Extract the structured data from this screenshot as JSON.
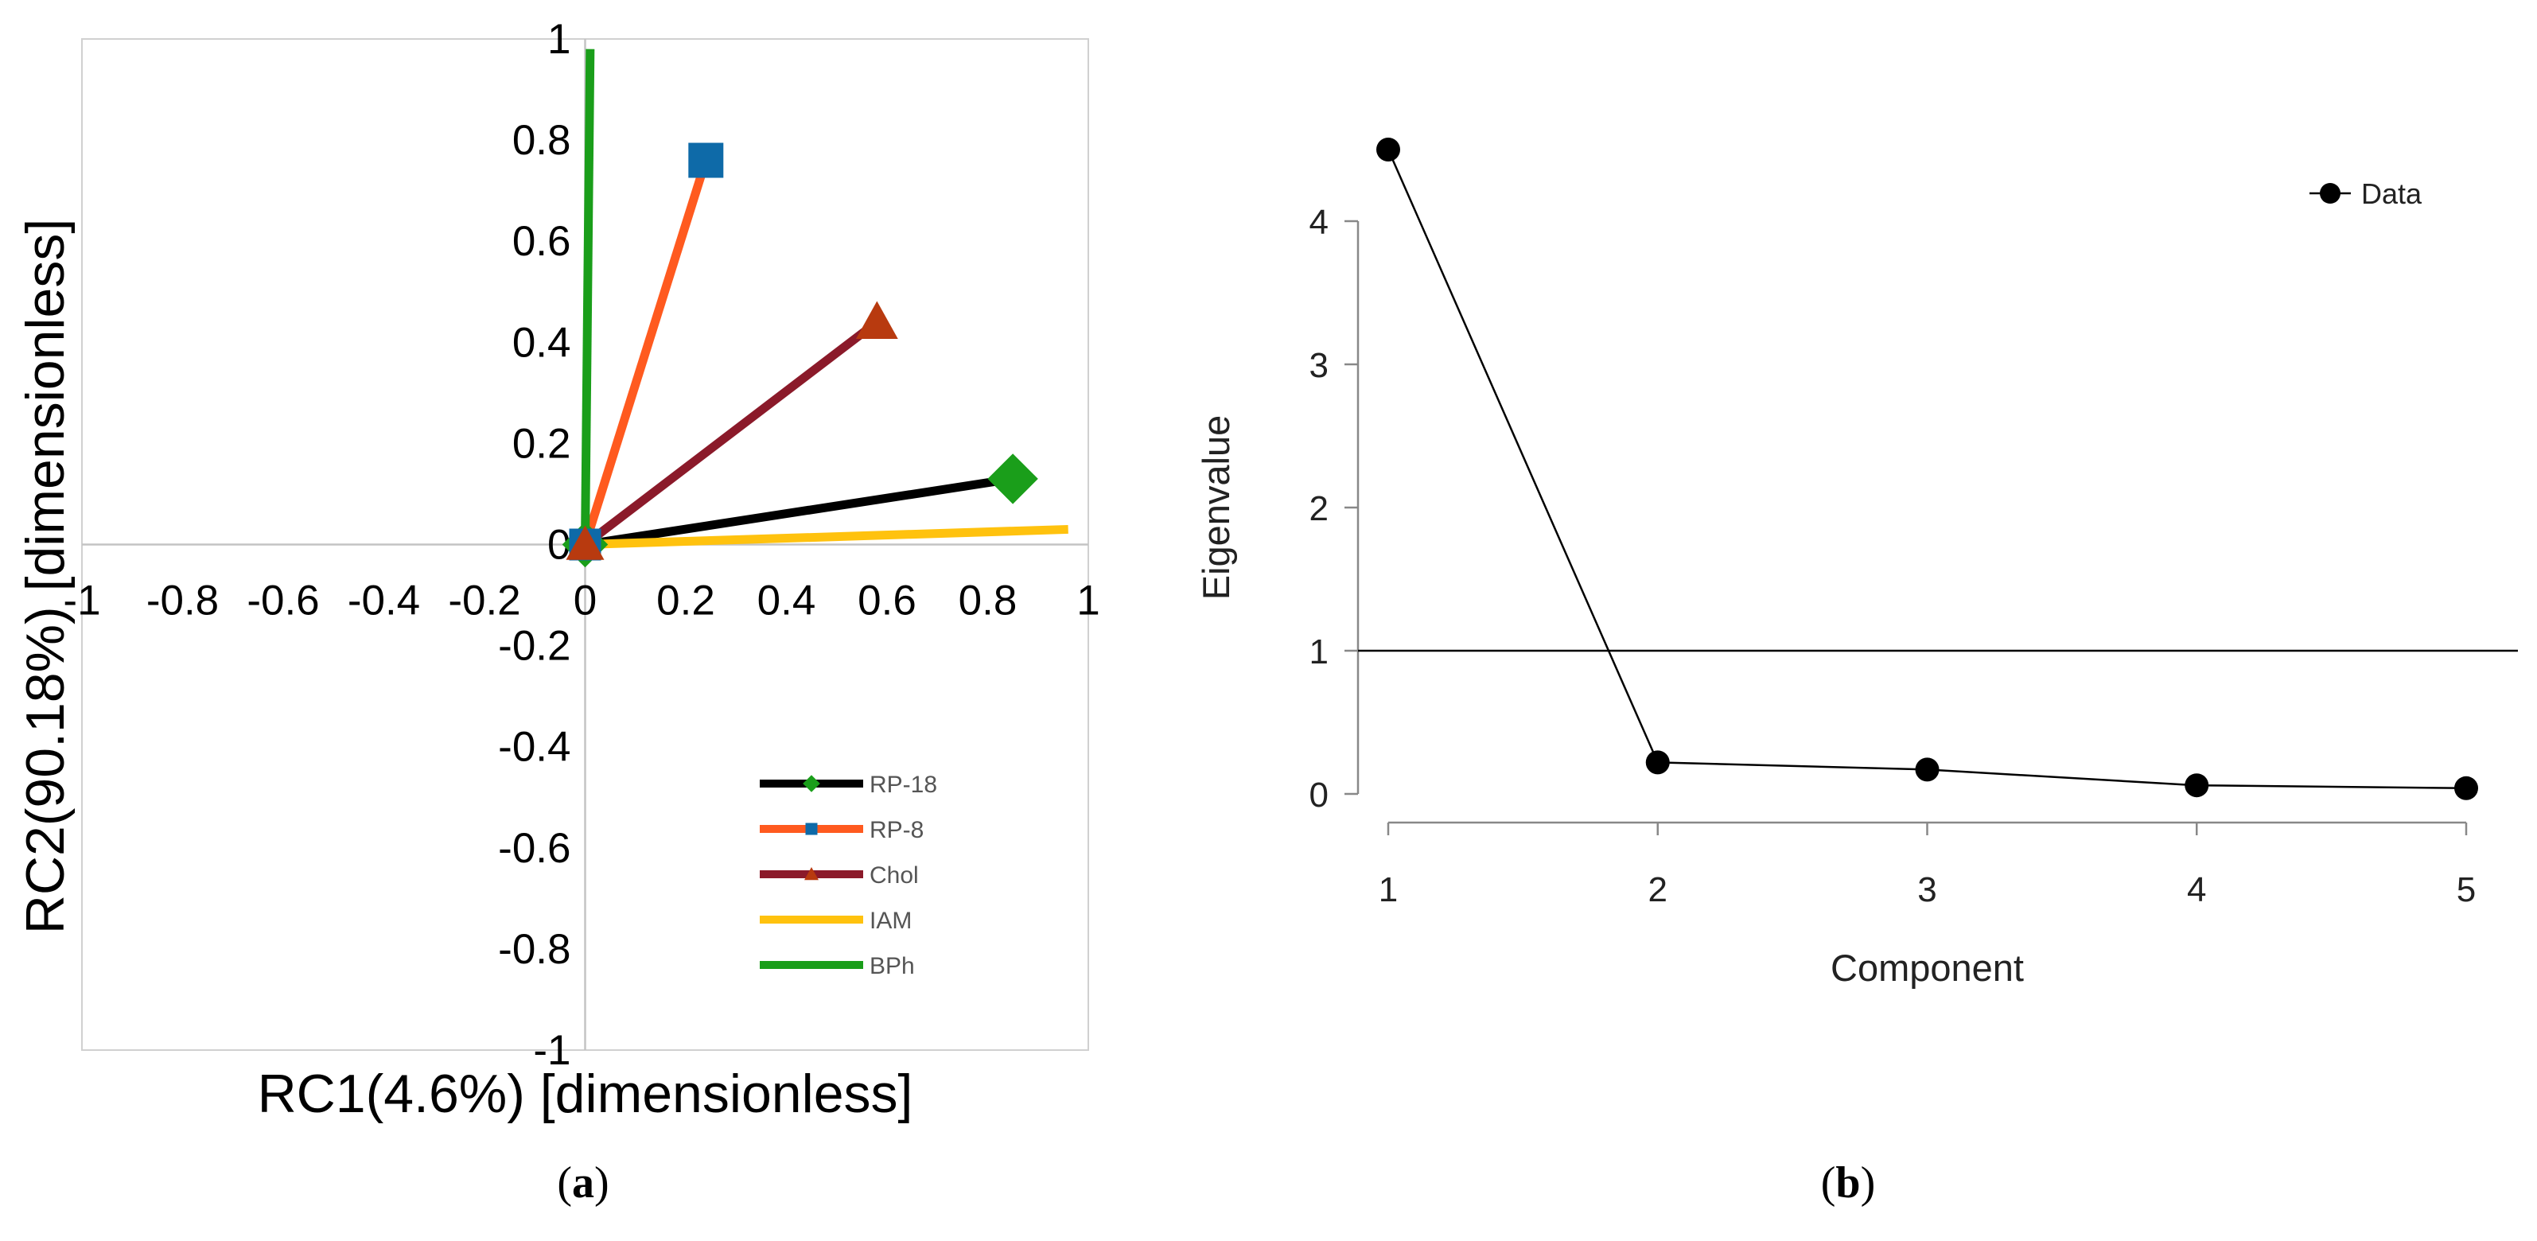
{
  "chart_data": [
    {
      "type": "line",
      "panel": "(a)",
      "xlabel": "RC1(4.6%) [dimensionless]",
      "ylabel": "RC2(90.18%) [dimensionless]",
      "xlim": [
        -1,
        1
      ],
      "ylim": [
        -1,
        1
      ],
      "x_ticks": [
        "-1",
        "-0.8",
        "-0.6",
        "-0.4",
        "-0.2",
        "0",
        "0.2",
        "0.4",
        "0.6",
        "0.8",
        "1"
      ],
      "y_ticks": [
        "1",
        "0.8",
        "0.6",
        "0.4",
        "0.2",
        "0",
        "-0.2",
        "-0.4",
        "-0.6",
        "-0.8",
        "-1"
      ],
      "legend_position": "bottom-right",
      "series": [
        {
          "name": "RP-18",
          "x": [
            0,
            0.85
          ],
          "y": [
            0,
            0.13
          ],
          "color": "#000000",
          "marker": "diamond",
          "marker_color": "#1a9e1a"
        },
        {
          "name": "RP-8",
          "x": [
            0,
            0.24
          ],
          "y": [
            0,
            0.76
          ],
          "color": "#ff5a1f",
          "marker": "square",
          "marker_color": "#0e6aa8"
        },
        {
          "name": "Chol",
          "x": [
            0,
            0.58
          ],
          "y": [
            0,
            0.44
          ],
          "color": "#8b1a2a",
          "marker": "triangle",
          "marker_color": "#b83a0f"
        },
        {
          "name": "IAM",
          "x": [
            0,
            0.96
          ],
          "y": [
            0,
            0.03
          ],
          "color": "#ffc20e",
          "marker": "none",
          "marker_color": "#ffc20e"
        },
        {
          "name": "BPh",
          "x": [
            0,
            0.01
          ],
          "y": [
            0,
            0.98
          ],
          "color": "#1a9e1a",
          "marker": "none",
          "marker_color": "#1a9e1a"
        }
      ]
    },
    {
      "type": "line",
      "panel": "(b)",
      "xlabel": "Component",
      "ylabel": "Eigenvalue",
      "x": [
        1,
        2,
        3,
        4,
        5
      ],
      "xlim": [
        1,
        5
      ],
      "ylim": [
        0,
        4
      ],
      "x_ticks": [
        "1",
        "2",
        "3",
        "4",
        "5"
      ],
      "y_ticks": [
        "0",
        "1",
        "2",
        "3",
        "4"
      ],
      "reference_line_y": 1,
      "legend_position": "top-right",
      "series": [
        {
          "name": "Data",
          "values": [
            4.5,
            0.22,
            0.17,
            0.06,
            0.04
          ],
          "color": "#000000",
          "marker": "circle"
        }
      ]
    }
  ],
  "captions": {
    "a": {
      "open": "(",
      "letter": "a",
      "close": ")"
    },
    "b": {
      "open": "(",
      "letter": "b",
      "close": ")"
    }
  }
}
